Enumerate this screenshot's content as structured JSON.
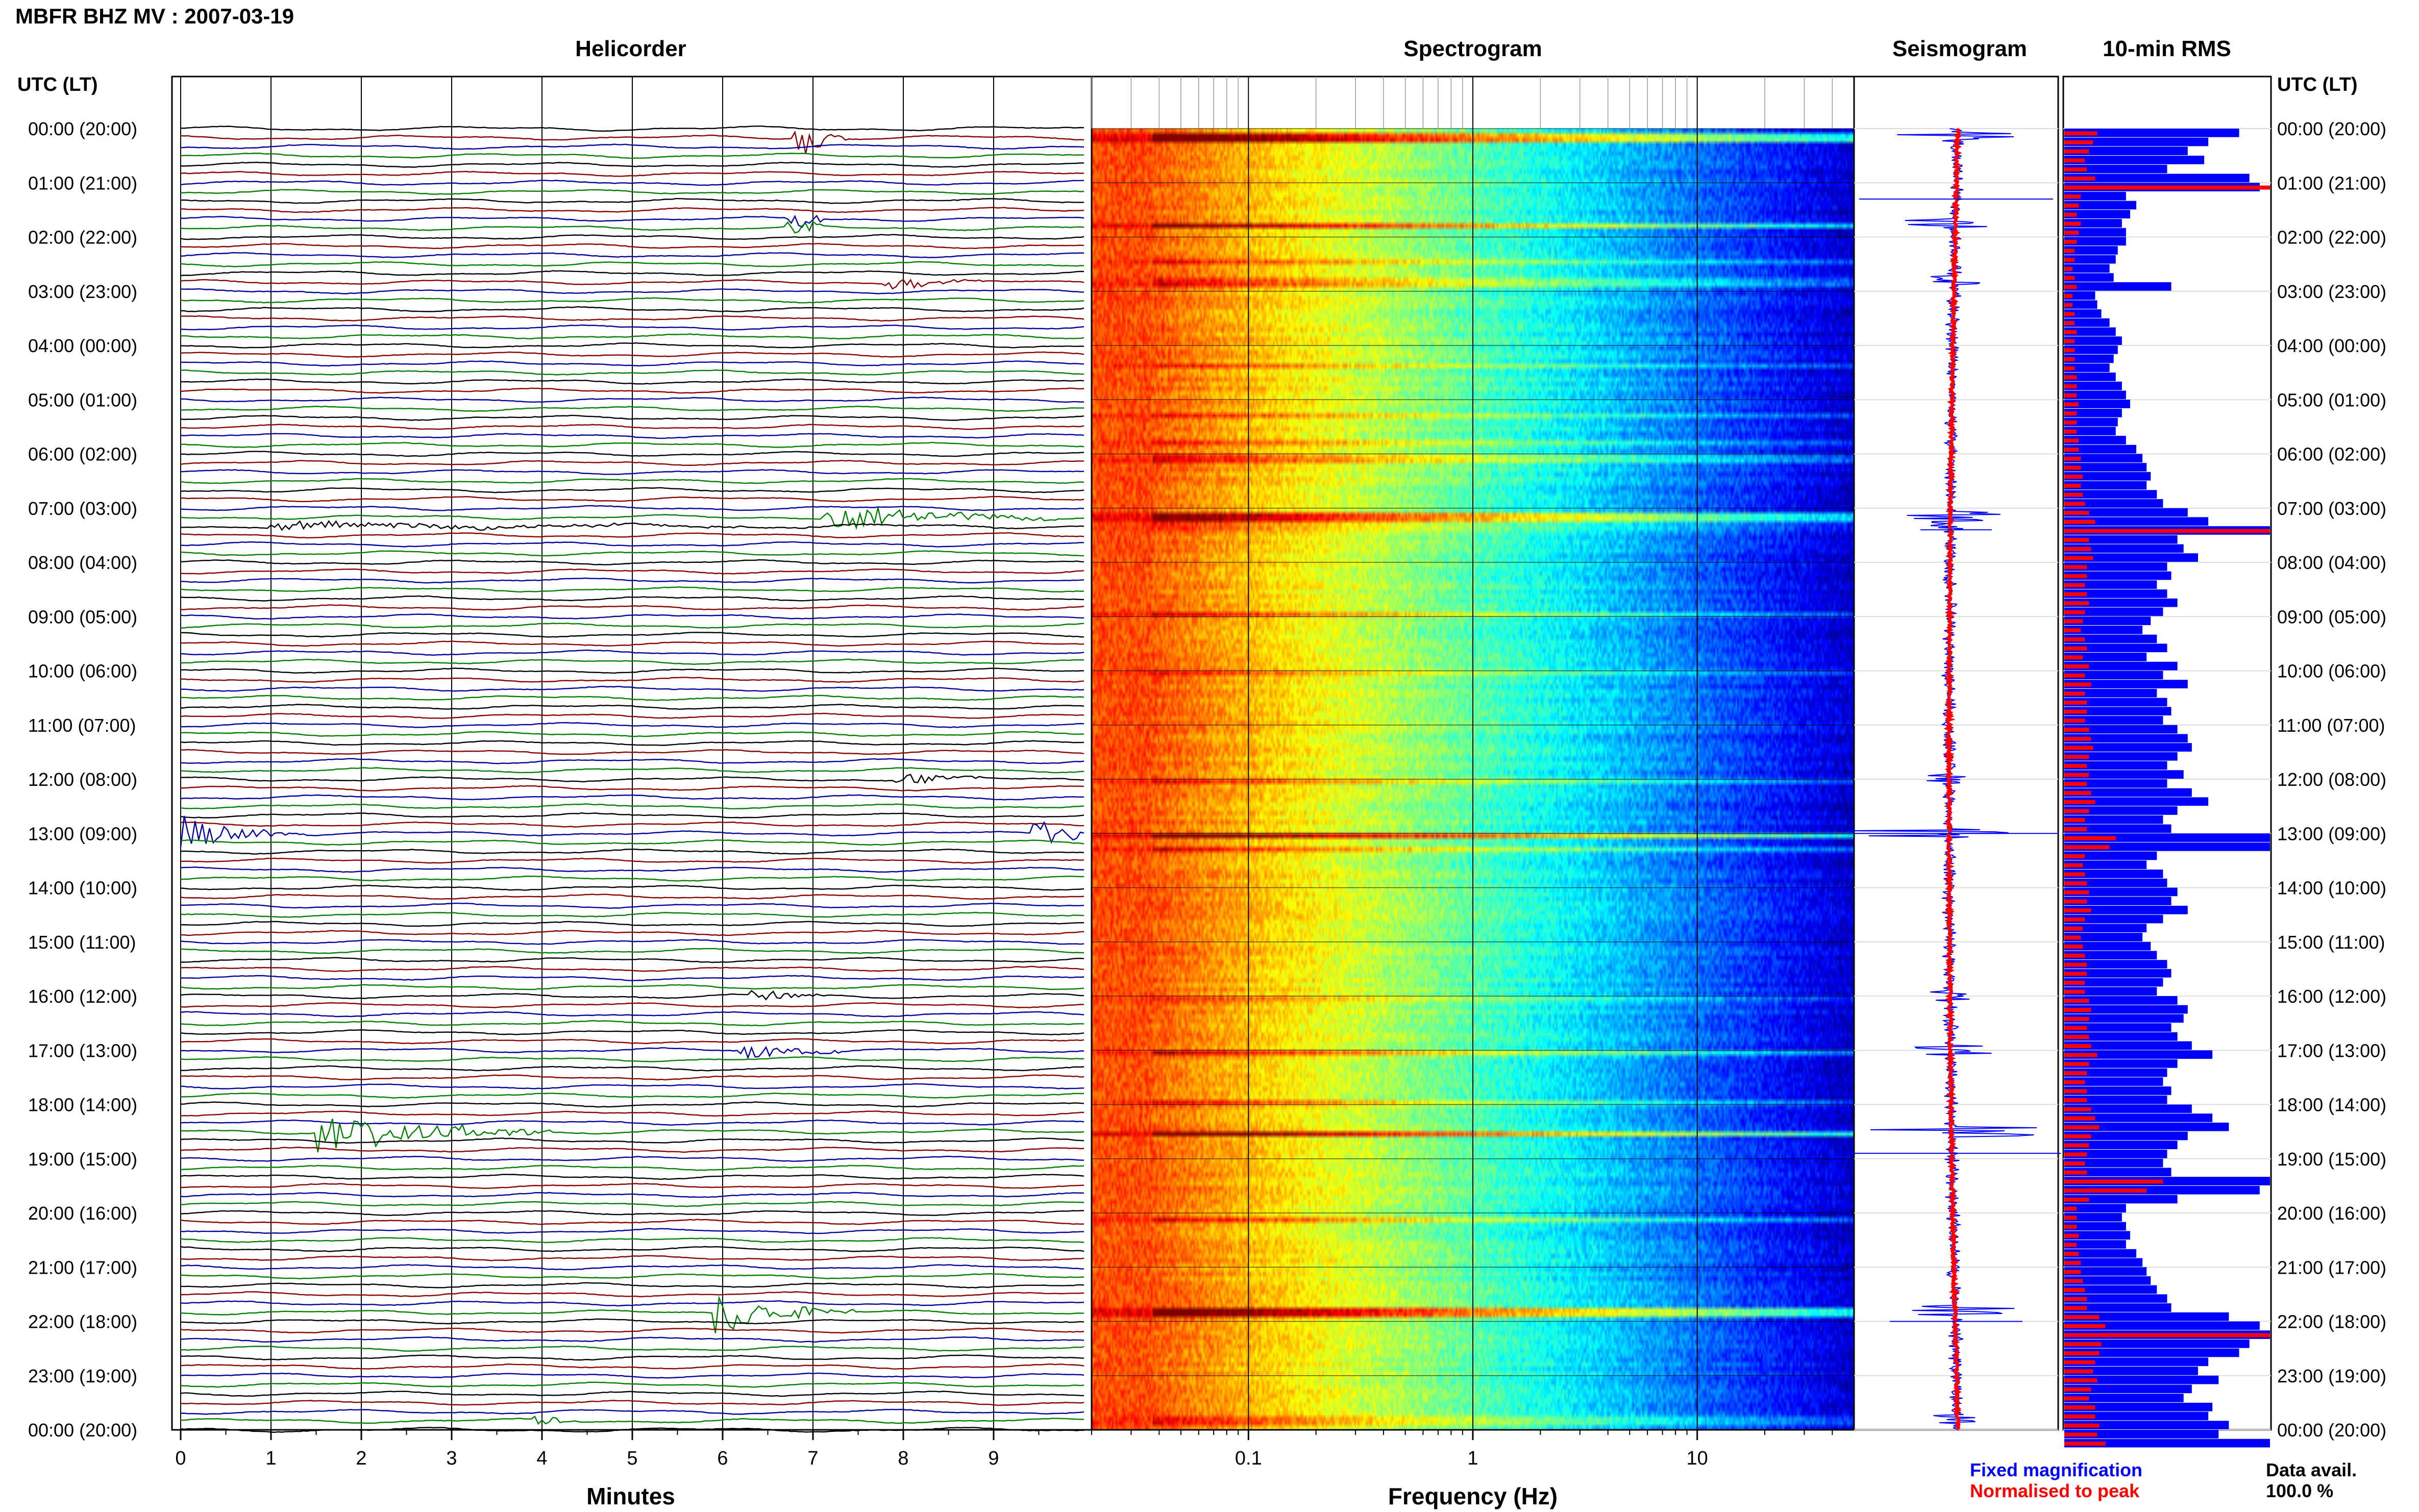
{
  "title": "MBFR BHZ MV : 2007-03-19",
  "panels": {
    "helicorder": "Helicorder",
    "spectrogram": "Spectrogram",
    "seismogram": "Seismogram",
    "rms": "10-min RMS"
  },
  "time_axis_header": "UTC (LT)",
  "time_labels": [
    "00:00 (20:00)",
    "01:00 (21:00)",
    "02:00 (22:00)",
    "03:00 (23:00)",
    "04:00 (00:00)",
    "05:00 (01:00)",
    "06:00 (02:00)",
    "07:00 (03:00)",
    "08:00 (04:00)",
    "09:00 (05:00)",
    "10:00 (06:00)",
    "11:00 (07:00)",
    "12:00 (08:00)",
    "13:00 (09:00)",
    "14:00 (10:00)",
    "15:00 (11:00)",
    "16:00 (12:00)",
    "17:00 (13:00)",
    "18:00 (14:00)",
    "19:00 (15:00)",
    "20:00 (16:00)",
    "21:00 (17:00)",
    "22:00 (18:00)",
    "23:00 (19:00)",
    "00:00 (20:00)"
  ],
  "x_axes": {
    "helicorder": {
      "label": "Minutes",
      "ticks": [
        "0",
        "1",
        "2",
        "3",
        "4",
        "5",
        "6",
        "7",
        "8",
        "9"
      ]
    },
    "spectrogram": {
      "label": "Frequency (Hz)",
      "ticks": [
        "0.1",
        "1",
        "10"
      ],
      "scale": "log"
    }
  },
  "legend": {
    "fixed": "Fixed magnification",
    "normalised": "Normalised to peak",
    "fixed_color": "#0000ff",
    "normalised_color": "#ff0000"
  },
  "data_avail": {
    "label": "Data avail.",
    "value": "100.0 %"
  },
  "colors": {
    "trace_cycle": [
      "#000000",
      "#8b0000",
      "#0000a0",
      "#008000"
    ],
    "rms_fixed": "#0000ff",
    "rms_normalised": "#ff0000"
  },
  "chart_data": {
    "type": "helicorder + spectrogram + seismogram + rms bars",
    "lines_per_hour": 6,
    "events": [
      {
        "hour": 0.15,
        "minute": 6.9,
        "amp": 2.5,
        "dur": 0.5
      },
      {
        "hour": 1.75,
        "minute": 6.8,
        "amp": 2.0,
        "dur": 0.3
      },
      {
        "hour": 2.8,
        "minute": 7.9,
        "amp": 1.0,
        "dur": 1.0
      },
      {
        "hour": 7.15,
        "minute": 7.2,
        "amp": 2.2,
        "dur": 2.5
      },
      {
        "hour": 7.3,
        "minute": 1.0,
        "amp": 0.6,
        "dur": 8.0
      },
      {
        "hour": 12.0,
        "minute": 8.0,
        "amp": 0.9,
        "dur": 1.0
      },
      {
        "hour": 13.0,
        "minute": 0.0,
        "amp": 2.5,
        "dur": 1.5
      },
      {
        "hour": 13.0,
        "minute": 9.5,
        "amp": 2.5,
        "dur": 0.6
      },
      {
        "hour": 16.0,
        "minute": 6.4,
        "amp": 0.9,
        "dur": 0.8
      },
      {
        "hour": 17.0,
        "minute": 6.3,
        "amp": 1.5,
        "dur": 1.0
      },
      {
        "hour": 18.5,
        "minute": 1.6,
        "amp": 3.5,
        "dur": 2.5
      },
      {
        "hour": 21.8,
        "minute": 6.0,
        "amp": 3.0,
        "dur": 1.5
      },
      {
        "hour": 23.8,
        "minute": 4.0,
        "amp": 0.8,
        "dur": 0.4
      }
    ],
    "rms_fixed": [
      0.85,
      0.7,
      0.6,
      0.68,
      0.5,
      0.9,
      0.95,
      0.3,
      0.35,
      0.32,
      0.28,
      0.3,
      0.3,
      0.26,
      0.25,
      0.22,
      0.24,
      0.52,
      0.15,
      0.16,
      0.18,
      0.22,
      0.25,
      0.28,
      0.26,
      0.24,
      0.22,
      0.25,
      0.28,
      0.3,
      0.32,
      0.28,
      0.26,
      0.25,
      0.3,
      0.35,
      0.38,
      0.4,
      0.42,
      0.4,
      0.45,
      0.48,
      0.6,
      0.7,
      1.0,
      0.55,
      0.58,
      0.65,
      0.5,
      0.52,
      0.45,
      0.5,
      0.55,
      0.48,
      0.42,
      0.38,
      0.45,
      0.5,
      0.4,
      0.55,
      0.48,
      0.6,
      0.45,
      0.5,
      0.52,
      0.48,
      0.55,
      0.6,
      0.62,
      0.55,
      0.5,
      0.58,
      0.5,
      0.62,
      0.7,
      0.55,
      0.48,
      0.52,
      1.0,
      1.0,
      0.45,
      0.4,
      0.48,
      0.5,
      0.55,
      0.52,
      0.6,
      0.48,
      0.4,
      0.38,
      0.42,
      0.45,
      0.5,
      0.52,
      0.48,
      0.45,
      0.55,
      0.6,
      0.58,
      0.52,
      0.55,
      0.62,
      0.72,
      0.55,
      0.5,
      0.48,
      0.52,
      0.5,
      0.62,
      0.72,
      0.8,
      0.6,
      0.55,
      0.5,
      0.48,
      0.52,
      1.0,
      0.95,
      0.55,
      0.3,
      0.28,
      0.3,
      0.32,
      0.3,
      0.35,
      0.38,
      0.4,
      0.42,
      0.45,
      0.5,
      0.52,
      0.8,
      0.95,
      1.0,
      0.9,
      0.85,
      0.7,
      0.65,
      0.75,
      0.62,
      0.58,
      0.72,
      0.7,
      0.8,
      0.75,
      1.0
    ],
    "rms_normalised": [
      0.16,
      0.14,
      0.12,
      0.1,
      0.11,
      0.15,
      1.0,
      0.08,
      0.07,
      0.06,
      0.08,
      0.07,
      0.06,
      0.05,
      0.05,
      0.04,
      0.05,
      0.06,
      0.04,
      0.04,
      0.05,
      0.05,
      0.06,
      0.05,
      0.05,
      0.05,
      0.05,
      0.06,
      0.06,
      0.06,
      0.07,
      0.06,
      0.06,
      0.06,
      0.07,
      0.07,
      0.08,
      0.08,
      0.09,
      0.08,
      0.09,
      0.1,
      0.12,
      0.15,
      1.0,
      0.12,
      0.13,
      0.14,
      0.11,
      0.11,
      0.1,
      0.11,
      0.12,
      0.1,
      0.09,
      0.08,
      0.1,
      0.11,
      0.09,
      0.12,
      0.1,
      0.13,
      0.1,
      0.11,
      0.11,
      0.1,
      0.12,
      0.13,
      0.14,
      0.12,
      0.11,
      0.12,
      0.11,
      0.13,
      0.15,
      0.12,
      0.1,
      0.11,
      0.25,
      0.22,
      0.1,
      0.09,
      0.1,
      0.11,
      0.12,
      0.11,
      0.13,
      0.1,
      0.09,
      0.08,
      0.09,
      0.1,
      0.11,
      0.11,
      0.1,
      0.1,
      0.12,
      0.13,
      0.12,
      0.11,
      0.12,
      0.13,
      0.16,
      0.12,
      0.11,
      0.1,
      0.11,
      0.11,
      0.13,
      0.15,
      0.17,
      0.13,
      0.12,
      0.11,
      0.1,
      0.11,
      0.48,
      0.4,
      0.12,
      0.06,
      0.06,
      0.06,
      0.07,
      0.06,
      0.07,
      0.08,
      0.08,
      0.09,
      0.1,
      0.11,
      0.11,
      0.17,
      0.2,
      1.0,
      0.18,
      0.17,
      0.15,
      0.14,
      0.16,
      0.13,
      0.12,
      0.15,
      0.15,
      0.17,
      0.16,
      0.2
    ]
  }
}
